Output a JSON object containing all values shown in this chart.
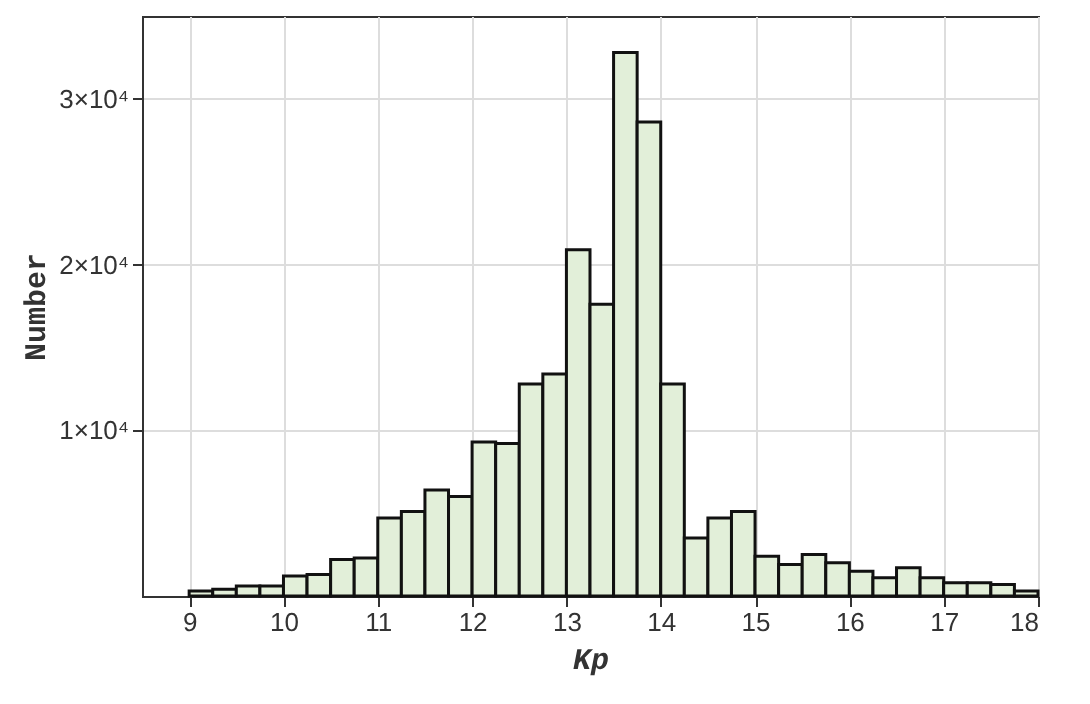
{
  "chart_data": {
    "type": "histogram",
    "xlabel": "Kp",
    "ylabel": "Number",
    "bins": [
      9,
      9.25,
      9.5,
      9.75,
      10,
      10.25,
      10.5,
      10.75,
      11,
      11.25,
      11.5,
      11.75,
      12,
      12.25,
      12.5,
      12.75,
      13,
      13.25,
      13.5,
      13.75,
      14,
      14.25,
      14.5,
      14.75,
      15,
      15.25,
      15.5,
      15.75,
      16,
      16.25,
      16.5,
      16.75,
      17,
      17.25,
      17.5,
      17.75,
      18
    ],
    "values": [
      300,
      400,
      600,
      600,
      1200,
      1300,
      2200,
      2300,
      4700,
      5100,
      6400,
      6000,
      9300,
      9200,
      12800,
      13400,
      20900,
      17600,
      32800,
      28600,
      12800,
      3500,
      4700,
      5100,
      2400,
      1900,
      2500,
      2000,
      1500,
      1100,
      1700,
      1100,
      800,
      800,
      700,
      300
    ],
    "color": "#e2efd9",
    "xlim": [
      8.5,
      18
    ],
    "xticks": [
      9,
      10,
      11,
      12,
      13,
      14,
      15,
      16,
      17,
      18
    ],
    "ylim": [
      0,
      35000
    ],
    "yticks": [
      {
        "value": 10000,
        "label": "1×10⁴"
      },
      {
        "value": 20000,
        "label": "2×10⁴"
      },
      {
        "value": 30000,
        "label": "3×10⁴"
      }
    ],
    "grid": true
  }
}
